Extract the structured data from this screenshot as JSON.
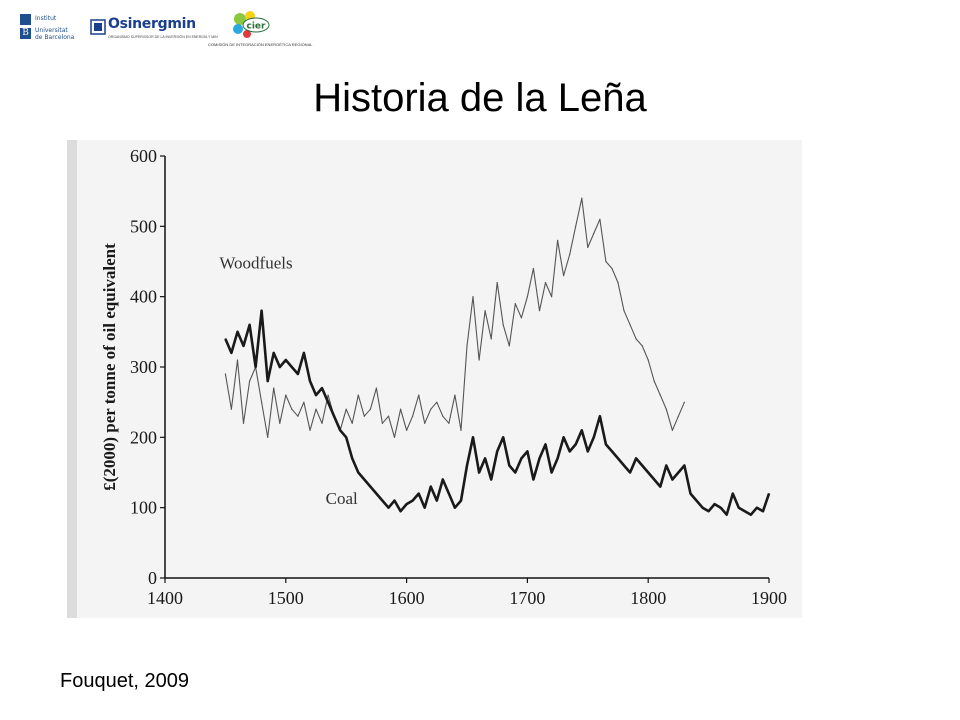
{
  "header": {
    "logos": [
      {
        "name": "Universitat de Barcelona",
        "lines": [
          "Institut",
          "Universitat",
          "de Barcelona"
        ]
      },
      {
        "name": "Osinergmin",
        "text": "Osinergmin",
        "subtitle": "ORGANISMO SUPERVISOR DE LA INVERSIÓN EN ENERGÍA Y MINERÍA"
      },
      {
        "name": "CIER",
        "text": "cier",
        "subtitle": "COMISIÓN DE INTEGRACIÓN ENERGÉTICA REGIONAL"
      }
    ]
  },
  "slide": {
    "title": "Historia de la Leña",
    "citation": "Fouquet, 2009"
  },
  "chart_data": {
    "type": "line",
    "title": "",
    "xlabel": "",
    "ylabel": "£(2000) per tonne of oil equivalent",
    "xlim": [
      1400,
      1900
    ],
    "ylim": [
      0,
      600
    ],
    "xticks": [
      1400,
      1500,
      1600,
      1700,
      1800,
      1900
    ],
    "yticks": [
      0,
      100,
      200,
      300,
      400,
      500,
      600
    ],
    "grid": false,
    "legend": "inline labels",
    "colors": {
      "woodfuels": "#555555",
      "coal": "#1a1a1a",
      "background": "#f4f4f4"
    },
    "series": [
      {
        "name": "Woodfuels",
        "label_at": [
          1445,
          440
        ],
        "x": [
          1450,
          1455,
          1460,
          1465,
          1470,
          1475,
          1480,
          1485,
          1490,
          1495,
          1500,
          1505,
          1510,
          1515,
          1520,
          1525,
          1530,
          1535,
          1540,
          1545,
          1550,
          1555,
          1560,
          1565,
          1570,
          1575,
          1580,
          1585,
          1590,
          1595,
          1600,
          1605,
          1610,
          1615,
          1620,
          1625,
          1630,
          1635,
          1640,
          1645,
          1650,
          1655,
          1660,
          1665,
          1670,
          1675,
          1680,
          1685,
          1690,
          1695,
          1700,
          1705,
          1710,
          1715,
          1720,
          1725,
          1730,
          1735,
          1740,
          1745,
          1750,
          1755,
          1760,
          1765,
          1770,
          1775,
          1780,
          1785,
          1790,
          1795,
          1800,
          1805,
          1810,
          1815,
          1820,
          1825,
          1830
        ],
        "y": [
          290,
          240,
          310,
          220,
          280,
          300,
          250,
          200,
          270,
          220,
          260,
          240,
          230,
          250,
          210,
          240,
          220,
          260,
          230,
          210,
          240,
          220,
          260,
          230,
          240,
          270,
          220,
          230,
          200,
          240,
          210,
          230,
          260,
          220,
          240,
          250,
          230,
          220,
          260,
          210,
          330,
          400,
          310,
          380,
          340,
          420,
          360,
          330,
          390,
          370,
          400,
          440,
          380,
          420,
          400,
          480,
          430,
          460,
          500,
          540,
          470,
          490,
          510,
          450,
          440,
          420,
          380,
          360,
          340,
          330,
          310,
          280,
          260,
          240,
          210,
          230,
          250
        ]
      },
      {
        "name": "Coal",
        "label_at": [
          1533,
          105
        ],
        "x": [
          1450,
          1455,
          1460,
          1465,
          1470,
          1475,
          1480,
          1485,
          1490,
          1495,
          1500,
          1505,
          1510,
          1515,
          1520,
          1525,
          1530,
          1535,
          1540,
          1545,
          1550,
          1555,
          1560,
          1565,
          1570,
          1575,
          1580,
          1585,
          1590,
          1595,
          1600,
          1605,
          1610,
          1615,
          1620,
          1625,
          1630,
          1635,
          1640,
          1645,
          1650,
          1655,
          1660,
          1665,
          1670,
          1675,
          1680,
          1685,
          1690,
          1695,
          1700,
          1705,
          1710,
          1715,
          1720,
          1725,
          1730,
          1735,
          1740,
          1745,
          1750,
          1755,
          1760,
          1765,
          1770,
          1775,
          1780,
          1785,
          1790,
          1795,
          1800,
          1805,
          1810,
          1815,
          1820,
          1825,
          1830,
          1835,
          1840,
          1845,
          1850,
          1855,
          1860,
          1865,
          1870,
          1875,
          1880,
          1885,
          1890,
          1895,
          1900
        ],
        "y": [
          340,
          320,
          350,
          330,
          360,
          300,
          380,
          280,
          320,
          300,
          310,
          300,
          290,
          320,
          280,
          260,
          270,
          250,
          230,
          210,
          200,
          170,
          150,
          140,
          130,
          120,
          110,
          100,
          110,
          95,
          105,
          110,
          120,
          100,
          130,
          110,
          140,
          120,
          100,
          110,
          160,
          200,
          150,
          170,
          140,
          180,
          200,
          160,
          150,
          170,
          180,
          140,
          170,
          190,
          150,
          170,
          200,
          180,
          190,
          210,
          180,
          200,
          230,
          190,
          180,
          170,
          160,
          150,
          170,
          160,
          150,
          140,
          130,
          160,
          140,
          150,
          160,
          120,
          110,
          100,
          95,
          105,
          100,
          90,
          120,
          100,
          95,
          90,
          100,
          95,
          120
        ]
      }
    ]
  }
}
